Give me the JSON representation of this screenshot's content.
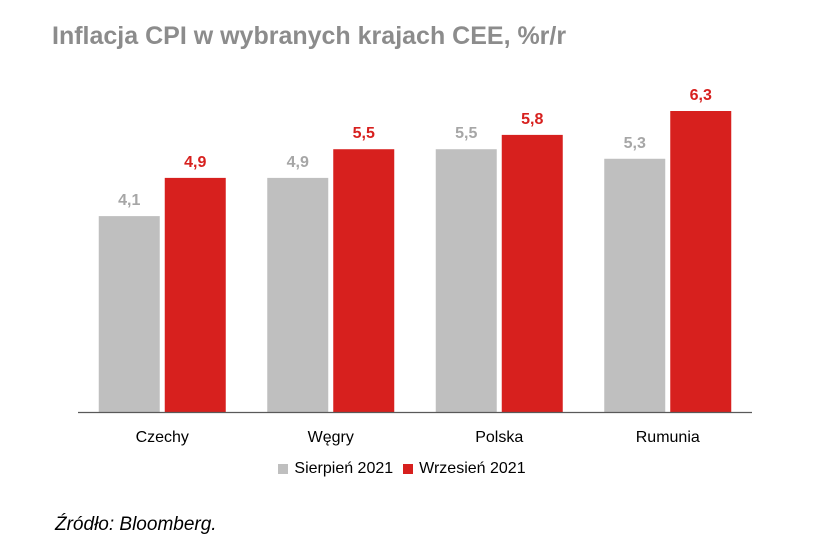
{
  "chart_data": {
    "type": "bar",
    "title": "Inflacja CPI w wybranych krajach CEE, %r/r",
    "categories": [
      "Czechy",
      "Węgry",
      "Polska",
      "Rumunia"
    ],
    "series": [
      {
        "name": "Sierpień 2021",
        "color": "#bfbfbf",
        "label_color": "#a6a6a6",
        "values": [
          4.1,
          4.9,
          5.5,
          5.3
        ],
        "labels": [
          "4,1",
          "4,9",
          "5,5",
          "5,3"
        ]
      },
      {
        "name": "Wrzesień 2021",
        "color": "#d7201e",
        "label_color": "#d7201e",
        "values": [
          4.9,
          5.5,
          5.8,
          6.3
        ],
        "labels": [
          "4,9",
          "5,5",
          "5,8",
          "6,3"
        ]
      }
    ],
    "ylim": [
      0,
      6.3
    ],
    "grid": false,
    "legend": "bottom"
  },
  "source": "Źródło: Bloomberg."
}
